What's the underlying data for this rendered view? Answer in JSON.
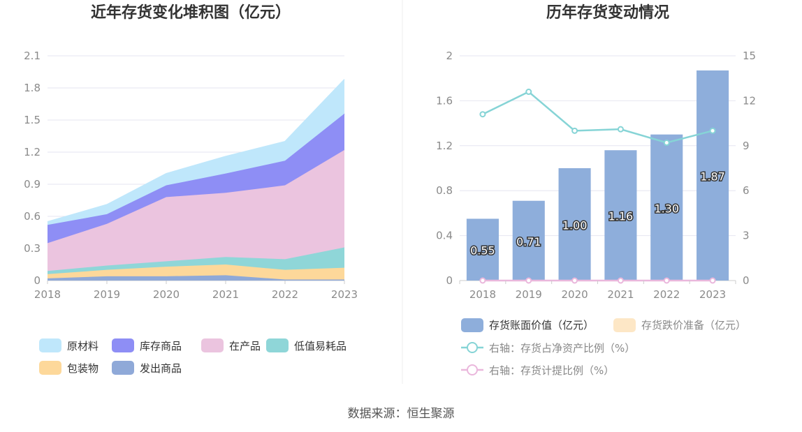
{
  "source": "数据来源：恒生聚源",
  "chart_data": [
    {
      "type": "area",
      "stacked": true,
      "title": "近年存货变化堆积图（亿元）",
      "categories": [
        "2018",
        "2019",
        "2020",
        "2021",
        "2022",
        "2023"
      ],
      "ylim": [
        0,
        2.1
      ],
      "yticks": [
        "0",
        "0.3",
        "0.6",
        "0.9",
        "1.2",
        "1.5",
        "1.8",
        "2.1"
      ],
      "grid": true,
      "legend_position": "bottom",
      "series": [
        {
          "name": "发出商品",
          "color": "#8fa9d8",
          "values": [
            0.02,
            0.04,
            0.04,
            0.05,
            0.01,
            0.01
          ]
        },
        {
          "name": "包装物",
          "color": "#fdd89a",
          "values": [
            0.04,
            0.06,
            0.09,
            0.1,
            0.09,
            0.11
          ]
        },
        {
          "name": "低值易耗品",
          "color": "#8fd6d8",
          "values": [
            0.03,
            0.04,
            0.05,
            0.07,
            0.1,
            0.19
          ]
        },
        {
          "name": "在产品",
          "color": "#ebc4df",
          "values": [
            0.26,
            0.39,
            0.6,
            0.6,
            0.69,
            0.91
          ]
        },
        {
          "name": "库存商品",
          "color": "#8e8ef5",
          "values": [
            0.17,
            0.09,
            0.11,
            0.18,
            0.23,
            0.34
          ]
        },
        {
          "name": "原材料",
          "color": "#bfe7fb",
          "values": [
            0.03,
            0.09,
            0.11,
            0.16,
            0.18,
            0.32
          ]
        }
      ],
      "legend_order": [
        "原材料",
        "库存商品",
        "在产品",
        "低值易耗品",
        "包装物",
        "发出商品"
      ]
    },
    {
      "type": "bar",
      "title": "历年存货变动情况",
      "categories": [
        "2018",
        "2019",
        "2020",
        "2021",
        "2022",
        "2023"
      ],
      "ylim": [
        0,
        2
      ],
      "yticks": [
        "0",
        "0.4",
        "0.8",
        "1.2",
        "1.6",
        "2"
      ],
      "y2lim": [
        0,
        15
      ],
      "y2ticks": [
        "0",
        "3",
        "6",
        "9",
        "12",
        "15"
      ],
      "grid": true,
      "legend_position": "bottom",
      "series": [
        {
          "name": "存货账面价值（亿元）",
          "kind": "bar",
          "axis": "left",
          "color": "#8eaedb",
          "values": [
            0.55,
            0.71,
            1.0,
            1.16,
            1.3,
            1.87
          ],
          "labels": [
            "0.55",
            "0.71",
            "1.00",
            "1.16",
            "1.30",
            "1.87"
          ]
        },
        {
          "name": "存货跌价准备（亿元）",
          "kind": "bar",
          "axis": "left",
          "color": "#fde7c6",
          "values": [
            0,
            0,
            0,
            0,
            0,
            0
          ]
        },
        {
          "name": "右轴：存货占净资产比例（%）",
          "kind": "line",
          "axis": "right",
          "color": "#86d4d6",
          "values": [
            11.1,
            12.6,
            10.0,
            10.1,
            9.2,
            10.0
          ]
        },
        {
          "name": "右轴：存货计提比例（%）",
          "kind": "line",
          "axis": "right",
          "color": "#eab7dc",
          "values": [
            0,
            0,
            0,
            0,
            0,
            0
          ]
        }
      ]
    }
  ]
}
